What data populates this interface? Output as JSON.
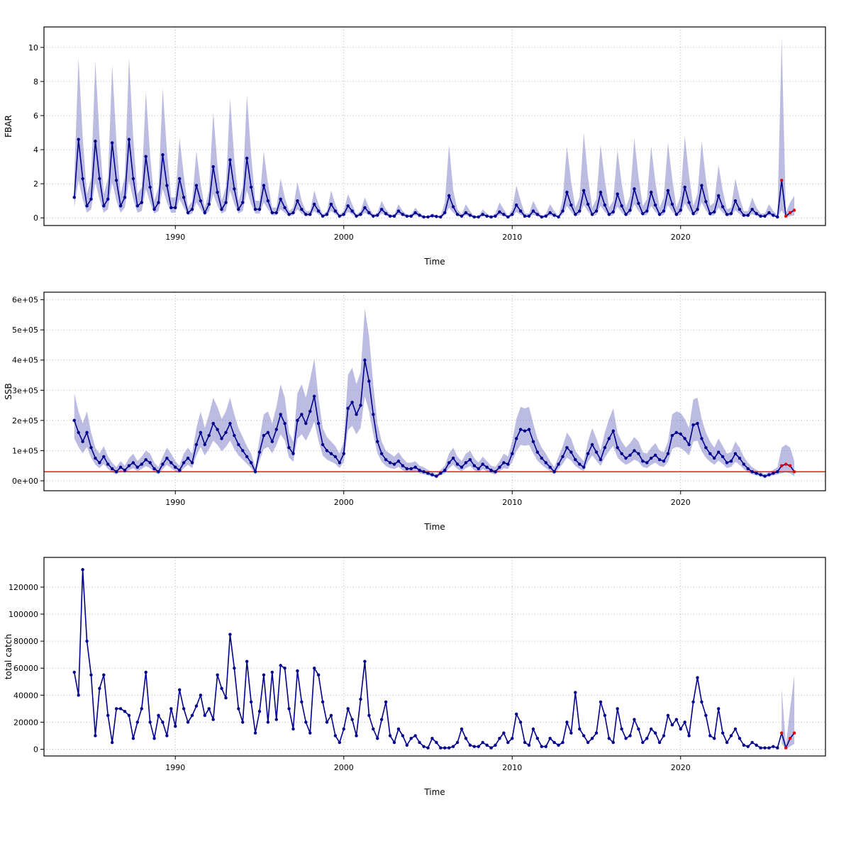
{
  "colors": {
    "line": "#00008B",
    "forecast": "#E60000",
    "band": "#6B6BBE",
    "band_opacity": 0.45,
    "grid": "#B5B5B5",
    "refline": "#FF0000",
    "box": "#000000"
  },
  "axis": {
    "xlabel": "Time",
    "x_ticks": [
      1990,
      2000,
      2010,
      2020
    ],
    "x_tick_labels": [
      "1990",
      "2000",
      "2010",
      "2020"
    ],
    "x_range": [
      1982.2,
      2028.6
    ]
  },
  "chart_data": [
    {
      "id": "fbar",
      "type": "line",
      "title": "",
      "ylabel": "FBAR",
      "xlabel": "Time",
      "x_start": 1984,
      "x_step": 0.25,
      "unit_scale": 1,
      "ylim": [
        -0.45,
        11.2
      ],
      "y_ticks": [
        0,
        2,
        4,
        6,
        8,
        10
      ],
      "y_tick_labels": [
        "0",
        "2",
        "4",
        "6",
        "8",
        "10"
      ],
      "forecast_start_index": 168,
      "values": [
        1.2,
        4.6,
        2.3,
        0.7,
        1.1,
        4.5,
        2.3,
        0.7,
        1.1,
        4.4,
        2.2,
        0.7,
        1.2,
        4.6,
        2.3,
        0.7,
        0.9,
        3.6,
        1.8,
        0.5,
        0.9,
        3.7,
        1.9,
        0.6,
        0.6,
        2.3,
        1.2,
        0.3,
        0.5,
        1.9,
        1.0,
        0.3,
        0.8,
        3.0,
        1.5,
        0.5,
        0.9,
        3.4,
        1.7,
        0.5,
        0.9,
        3.5,
        1.8,
        0.5,
        0.5,
        1.9,
        1.0,
        0.3,
        0.3,
        1.1,
        0.6,
        0.2,
        0.3,
        1.0,
        0.5,
        0.2,
        0.2,
        0.8,
        0.4,
        0.1,
        0.2,
        0.8,
        0.4,
        0.1,
        0.2,
        0.7,
        0.4,
        0.1,
        0.2,
        0.6,
        0.3,
        0.1,
        0.15,
        0.5,
        0.25,
        0.1,
        0.1,
        0.4,
        0.2,
        0.1,
        0.1,
        0.3,
        0.15,
        0.05,
        0.05,
        0.12,
        0.08,
        0.05,
        0.3,
        1.3,
        0.65,
        0.2,
        0.1,
        0.3,
        0.15,
        0.05,
        0.05,
        0.2,
        0.1,
        0.05,
        0.1,
        0.35,
        0.2,
        0.05,
        0.2,
        0.75,
        0.4,
        0.1,
        0.1,
        0.4,
        0.2,
        0.05,
        0.1,
        0.3,
        0.15,
        0.05,
        0.4,
        1.5,
        0.75,
        0.2,
        0.4,
        1.6,
        0.8,
        0.2,
        0.4,
        1.5,
        0.75,
        0.2,
        0.35,
        1.4,
        0.7,
        0.2,
        0.45,
        1.7,
        0.85,
        0.25,
        0.4,
        1.5,
        0.75,
        0.2,
        0.4,
        1.6,
        0.8,
        0.2,
        0.45,
        1.8,
        0.9,
        0.25,
        0.5,
        1.9,
        0.95,
        0.25,
        0.35,
        1.3,
        0.65,
        0.2,
        0.25,
        1.0,
        0.5,
        0.15,
        0.15,
        0.5,
        0.25,
        0.1,
        0.1,
        0.3,
        0.15,
        0.05,
        2.2,
        0.1,
        0.3,
        0.45
      ],
      "band": {
        "start_index": 0,
        "lo": [
          0.6,
          2.2,
          1.1,
          0.3,
          0.5,
          2.1,
          1.1,
          0.3,
          0.5,
          2.1,
          1.0,
          0.3,
          0.6,
          2.2,
          1.1,
          0.3,
          0.4,
          1.7,
          0.9,
          0.25,
          0.4,
          1.7,
          0.9,
          0.3,
          0.3,
          1.1,
          0.6,
          0.15,
          0.25,
          0.9,
          0.5,
          0.15,
          0.4,
          1.4,
          0.7,
          0.25,
          0.4,
          1.6,
          0.8,
          0.25,
          0.4,
          1.6,
          0.8,
          0.25,
          0.25,
          0.9,
          0.5,
          0.15,
          0.15,
          0.5,
          0.3,
          0.1,
          0.15,
          0.5,
          0.25,
          0.1,
          0.1,
          0.4,
          0.2,
          0.05,
          0.1,
          0.4,
          0.2,
          0.05,
          0.1,
          0.35,
          0.2,
          0.05,
          0.1,
          0.3,
          0.15,
          0.05,
          0.07,
          0.25,
          0.12,
          0.05,
          0.05,
          0.2,
          0.1,
          0.05,
          0.05,
          0.15,
          0.07,
          0.02,
          0.02,
          0.06,
          0.04,
          0.02,
          0.15,
          0.6,
          0.3,
          0.1,
          0.05,
          0.15,
          0.07,
          0.02,
          0.02,
          0.1,
          0.05,
          0.02,
          0.05,
          0.16,
          0.09,
          0.02,
          0.09,
          0.35,
          0.18,
          0.05,
          0.05,
          0.18,
          0.09,
          0.02,
          0.05,
          0.14,
          0.07,
          0.02,
          0.18,
          0.7,
          0.35,
          0.09,
          0.18,
          0.75,
          0.37,
          0.09,
          0.18,
          0.7,
          0.35,
          0.09,
          0.16,
          0.65,
          0.32,
          0.09,
          0.2,
          0.8,
          0.4,
          0.11,
          0.18,
          0.7,
          0.35,
          0.09,
          0.18,
          0.75,
          0.37,
          0.09,
          0.2,
          0.85,
          0.42,
          0.11,
          0.22,
          0.9,
          0.44,
          0.11,
          0.16,
          0.6,
          0.3,
          0.09,
          0.11,
          0.45,
          0.22,
          0.07,
          0.07,
          0.22,
          0.11,
          0.05,
          0.05,
          0.14,
          0.07,
          0.02,
          0.45,
          0.03,
          0.1,
          0.15
        ],
        "hi": [
          2.4,
          9.4,
          4.7,
          1.4,
          2.3,
          9.2,
          4.7,
          1.4,
          2.3,
          9.0,
          4.5,
          1.4,
          2.4,
          9.4,
          4.7,
          1.4,
          1.8,
          7.4,
          3.7,
          1.0,
          1.8,
          7.6,
          3.9,
          1.2,
          1.2,
          4.7,
          2.5,
          0.6,
          1.0,
          3.9,
          2.0,
          0.6,
          1.6,
          6.2,
          3.1,
          1.0,
          1.8,
          7.0,
          3.5,
          1.0,
          1.8,
          7.2,
          3.7,
          1.0,
          1.0,
          3.9,
          2.0,
          0.6,
          0.6,
          2.3,
          1.2,
          0.4,
          0.6,
          2.1,
          1.0,
          0.4,
          0.4,
          1.6,
          0.8,
          0.2,
          0.4,
          1.6,
          0.8,
          0.2,
          0.4,
          1.4,
          0.8,
          0.2,
          0.4,
          1.2,
          0.6,
          0.2,
          0.3,
          1.0,
          0.5,
          0.2,
          0.2,
          0.8,
          0.4,
          0.2,
          0.2,
          0.6,
          0.3,
          0.1,
          0.1,
          0.25,
          0.16,
          0.1,
          0.9,
          4.3,
          1.6,
          0.5,
          0.2,
          0.8,
          0.4,
          0.1,
          0.1,
          0.5,
          0.25,
          0.1,
          0.25,
          0.9,
          0.5,
          0.1,
          0.5,
          1.9,
          1.0,
          0.25,
          0.25,
          1.0,
          0.5,
          0.1,
          0.25,
          0.8,
          0.4,
          0.1,
          1.1,
          4.2,
          2.1,
          0.6,
          1.2,
          5.0,
          2.4,
          0.6,
          1.1,
          4.3,
          2.2,
          0.6,
          1.0,
          4.0,
          2.0,
          0.6,
          1.3,
          4.7,
          2.4,
          0.7,
          1.1,
          4.2,
          2.1,
          0.6,
          1.2,
          4.4,
          2.3,
          0.6,
          1.3,
          4.8,
          2.5,
          0.7,
          1.4,
          4.5,
          2.3,
          0.7,
          0.9,
          3.1,
          1.6,
          0.5,
          0.6,
          2.3,
          1.2,
          0.4,
          0.4,
          1.2,
          0.6,
          0.25,
          0.25,
          0.8,
          0.4,
          0.15,
          10.6,
          0.3,
          0.9,
          1.3
        ]
      }
    },
    {
      "id": "ssb",
      "type": "line",
      "title": "",
      "ylabel": "SSB",
      "xlabel": "Time",
      "x_start": 1984,
      "x_step": 0.25,
      "unit_scale": 1000,
      "ylim": [
        -33,
        625
      ],
      "y_ticks": [
        0,
        100,
        200,
        300,
        400,
        500,
        600
      ],
      "y_tick_labels": [
        "0e+00",
        "1e+05",
        "2e+05",
        "3e+05",
        "4e+05",
        "5e+05",
        "6e+05"
      ],
      "forecast_start_index": 168,
      "refline": 30,
      "values": [
        200,
        160,
        130,
        160,
        110,
        75,
        60,
        80,
        55,
        40,
        30,
        45,
        35,
        50,
        60,
        45,
        55,
        70,
        60,
        40,
        30,
        55,
        75,
        60,
        45,
        35,
        60,
        75,
        60,
        120,
        160,
        120,
        150,
        190,
        170,
        140,
        160,
        190,
        150,
        120,
        100,
        80,
        60,
        30,
        95,
        150,
        160,
        130,
        170,
        220,
        190,
        110,
        90,
        200,
        220,
        190,
        230,
        280,
        190,
        120,
        100,
        90,
        80,
        60,
        90,
        240,
        260,
        220,
        250,
        400,
        330,
        220,
        130,
        90,
        70,
        60,
        55,
        65,
        50,
        40,
        40,
        45,
        35,
        30,
        25,
        20,
        15,
        25,
        35,
        60,
        75,
        55,
        45,
        60,
        70,
        50,
        40,
        55,
        45,
        35,
        30,
        45,
        60,
        55,
        90,
        140,
        170,
        165,
        170,
        130,
        95,
        75,
        60,
        45,
        30,
        55,
        80,
        110,
        95,
        70,
        55,
        45,
        90,
        120,
        95,
        70,
        110,
        140,
        165,
        110,
        90,
        75,
        85,
        100,
        90,
        65,
        60,
        75,
        85,
        70,
        65,
        90,
        150,
        160,
        155,
        140,
        120,
        185,
        190,
        140,
        110,
        90,
        75,
        95,
        80,
        60,
        65,
        90,
        75,
        55,
        40,
        30,
        25,
        20,
        15,
        20,
        25,
        30,
        50,
        55,
        50,
        30
      ],
      "band": {
        "start_index": 0,
        "lo": [
          140,
          112,
          91,
          112,
          77,
          53,
          42,
          56,
          39,
          28,
          21,
          32,
          25,
          35,
          42,
          32,
          39,
          49,
          42,
          28,
          21,
          39,
          53,
          42,
          32,
          25,
          42,
          53,
          42,
          84,
          112,
          84,
          105,
          133,
          119,
          98,
          112,
          133,
          105,
          84,
          70,
          56,
          42,
          21,
          67,
          105,
          112,
          91,
          119,
          154,
          133,
          77,
          63,
          140,
          154,
          133,
          161,
          196,
          133,
          84,
          70,
          63,
          56,
          42,
          63,
          168,
          182,
          154,
          175,
          280,
          231,
          154,
          91,
          63,
          49,
          42,
          39,
          46,
          35,
          28,
          28,
          32,
          25,
          21,
          18,
          14,
          11,
          18,
          25,
          42,
          53,
          39,
          32,
          42,
          49,
          35,
          28,
          39,
          32,
          25,
          21,
          32,
          42,
          39,
          63,
          98,
          119,
          116,
          119,
          91,
          67,
          53,
          42,
          32,
          21,
          39,
          56,
          77,
          67,
          49,
          39,
          32,
          63,
          84,
          67,
          49,
          77,
          98,
          116,
          77,
          63,
          53,
          60,
          70,
          63,
          46,
          42,
          53,
          60,
          49,
          46,
          63,
          105,
          112,
          109,
          98,
          84,
          130,
          133,
          98,
          77,
          63,
          53,
          67,
          56,
          42,
          46,
          63,
          53,
          39,
          28,
          21,
          18,
          14,
          11,
          14,
          18,
          21,
          25,
          28,
          25,
          15
        ],
        "hi": [
          290,
          230,
          190,
          230,
          160,
          110,
          90,
          115,
          80,
          60,
          45,
          65,
          50,
          75,
          90,
          65,
          80,
          100,
          90,
          60,
          45,
          80,
          110,
          90,
          65,
          50,
          90,
          110,
          90,
          175,
          230,
          175,
          220,
          275,
          245,
          205,
          230,
          275,
          220,
          175,
          145,
          115,
          90,
          45,
          140,
          220,
          230,
          190,
          245,
          320,
          275,
          160,
          130,
          290,
          320,
          275,
          335,
          405,
          275,
          175,
          145,
          130,
          115,
          90,
          130,
          350,
          375,
          320,
          360,
          570,
          480,
          320,
          190,
          130,
          100,
          90,
          80,
          95,
          75,
          60,
          60,
          65,
          50,
          45,
          36,
          29,
          22,
          36,
          50,
          90,
          110,
          80,
          65,
          90,
          100,
          75,
          60,
          80,
          65,
          50,
          45,
          65,
          90,
          80,
          130,
          205,
          245,
          240,
          245,
          190,
          140,
          110,
          90,
          65,
          45,
          80,
          115,
          160,
          140,
          100,
          80,
          65,
          130,
          175,
          140,
          100,
          160,
          205,
          240,
          160,
          130,
          110,
          125,
          145,
          130,
          95,
          90,
          110,
          125,
          100,
          95,
          130,
          220,
          230,
          225,
          205,
          175,
          270,
          275,
          205,
          160,
          130,
          110,
          140,
          115,
          90,
          95,
          130,
          110,
          80,
          60,
          45,
          36,
          29,
          22,
          29,
          36,
          45,
          110,
          120,
          110,
          65
        ]
      }
    },
    {
      "id": "total_catch",
      "type": "line",
      "title": "",
      "ylabel": "total catch",
      "xlabel": "Time",
      "x_start": 1984,
      "x_step": 0.25,
      "unit_scale": 1000,
      "ylim": [
        -5,
        142
      ],
      "y_ticks": [
        0,
        20,
        40,
        60,
        80,
        100,
        120
      ],
      "y_tick_labels": [
        "0",
        "20000",
        "40000",
        "60000",
        "80000",
        "100000",
        "120000"
      ],
      "forecast_start_index": 168,
      "values": [
        57,
        40,
        133,
        80,
        55,
        10,
        45,
        55,
        25,
        5,
        30,
        30,
        28,
        25,
        8,
        20,
        30,
        57,
        20,
        8,
        25,
        20,
        10,
        30,
        17,
        44,
        30,
        20,
        25,
        32,
        40,
        25,
        30,
        22,
        55,
        45,
        38,
        85,
        60,
        30,
        20,
        65,
        35,
        12,
        28,
        55,
        20,
        57,
        22,
        62,
        60,
        30,
        15,
        58,
        35,
        20,
        12,
        60,
        55,
        35,
        20,
        25,
        10,
        5,
        15,
        30,
        22,
        10,
        37,
        65,
        25,
        15,
        8,
        22,
        35,
        10,
        5,
        15,
        10,
        3,
        8,
        10,
        5,
        2,
        1,
        8,
        5,
        1,
        1,
        1,
        2,
        5,
        15,
        8,
        3,
        2,
        2,
        5,
        3,
        1,
        3,
        8,
        12,
        5,
        8,
        26,
        20,
        5,
        3,
        15,
        8,
        2,
        2,
        8,
        5,
        3,
        5,
        20,
        12,
        42,
        15,
        10,
        5,
        8,
        12,
        35,
        25,
        8,
        5,
        30,
        15,
        8,
        10,
        22,
        15,
        5,
        8,
        15,
        12,
        5,
        10,
        25,
        18,
        22,
        15,
        20,
        10,
        35,
        53,
        35,
        25,
        10,
        8,
        30,
        12,
        5,
        10,
        15,
        8,
        3,
        2,
        5,
        3,
        1,
        1,
        1,
        2,
        1,
        12,
        1,
        8,
        12
      ],
      "band": {
        "start_index": 168,
        "lo": [
          4,
          0,
          2,
          4
        ],
        "hi": [
          45,
          3,
          30,
          55
        ]
      }
    }
  ]
}
